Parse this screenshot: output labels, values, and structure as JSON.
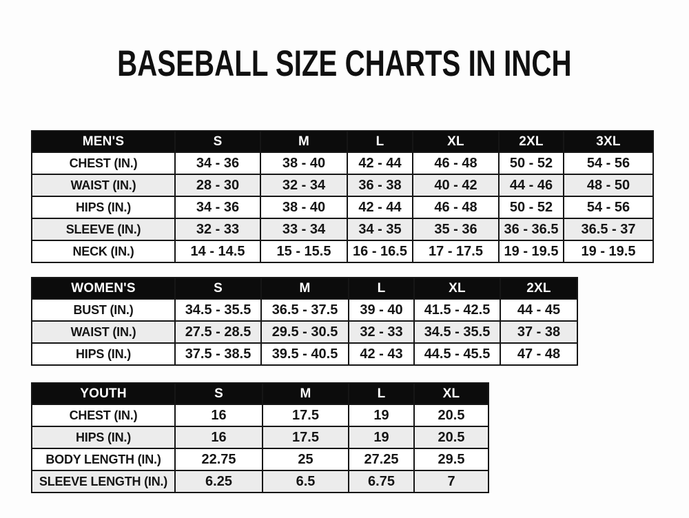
{
  "title": "BASEBALL SIZE CHARTS IN INCH",
  "tables": [
    {
      "header": [
        "MEN'S",
        "S",
        "M",
        "L",
        "XL",
        "2XL",
        "3XL"
      ],
      "rows": [
        {
          "label": "CHEST (IN.)",
          "values": [
            "34 - 36",
            "38 - 40",
            "42 - 44",
            "46 - 48",
            "50 - 52",
            "54 - 56"
          ]
        },
        {
          "label": "WAIST (IN.)",
          "values": [
            "28 - 30",
            "32 - 34",
            "36 - 38",
            "40 - 42",
            "44 - 46",
            "48 - 50"
          ]
        },
        {
          "label": "HIPS (IN.)",
          "values": [
            "34 - 36",
            "38 - 40",
            "42 - 44",
            "46 - 48",
            "50 - 52",
            "54 - 56"
          ]
        },
        {
          "label": "SLEEVE (IN.)",
          "values": [
            "32 - 33",
            "33 - 34",
            "34 - 35",
            "35 - 36",
            "36 - 36.5",
            "36.5 - 37"
          ]
        },
        {
          "label": "NECK (IN.)",
          "values": [
            "14 - 14.5",
            "15 - 15.5",
            "16 - 16.5",
            "17 - 17.5",
            "19 - 19.5",
            "19 - 19.5"
          ]
        }
      ]
    },
    {
      "header": [
        "WOMEN'S",
        "S",
        "M",
        "L",
        "XL",
        "2XL"
      ],
      "rows": [
        {
          "label": "BUST (IN.)",
          "values": [
            "34.5 - 35.5",
            "36.5 - 37.5",
            "39 - 40",
            "41.5 - 42.5",
            "44 - 45"
          ]
        },
        {
          "label": "WAIST (IN.)",
          "values": [
            "27.5 - 28.5",
            "29.5 - 30.5",
            "32 - 33",
            "34.5 - 35.5",
            "37 - 38"
          ]
        },
        {
          "label": "HIPS (IN.)",
          "values": [
            "37.5 - 38.5",
            "39.5 - 40.5",
            "42 - 43",
            "44.5 - 45.5",
            "47 - 48"
          ]
        }
      ]
    },
    {
      "header": [
        "YOUTH",
        "S",
        "M",
        "L",
        "XL"
      ],
      "rows": [
        {
          "label": "CHEST (IN.)",
          "values": [
            "16",
            "17.5",
            "19",
            "20.5"
          ]
        },
        {
          "label": "HIPS (IN.)",
          "values": [
            "16",
            "17.5",
            "19",
            "20.5"
          ]
        },
        {
          "label": "BODY LENGTH (IN.)",
          "values": [
            "22.75",
            "25",
            "27.25",
            "29.5"
          ]
        },
        {
          "label": "SLEEVE LENGTH (IN.)",
          "values": [
            "6.25",
            "6.5",
            "6.75",
            "7"
          ]
        }
      ]
    }
  ],
  "colors": {
    "header_bg": "#0c0c0c",
    "header_text": "#ffffff",
    "alt_row_bg": "#ececec",
    "border": "#161616",
    "page_bg": "#fdfdfd",
    "text": "#151515"
  }
}
